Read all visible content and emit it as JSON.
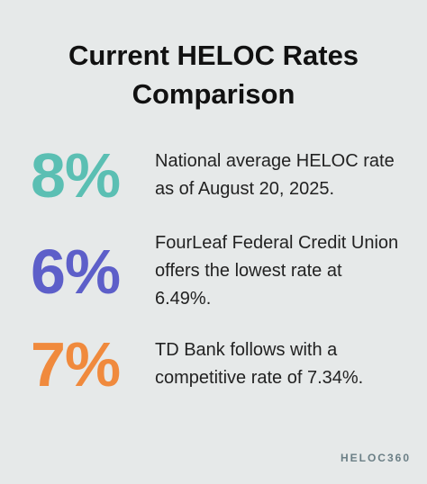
{
  "header": {
    "title": "Current HELOC Rates Comparison"
  },
  "items": [
    {
      "stat": "8%",
      "color": "#5bbfb3",
      "text": "National average HELOC rate as of August 20, 2025."
    },
    {
      "stat": "6%",
      "color": "#5d5fc9",
      "text": "FourLeaf Federal Credit Union offers the lowest rate at 6.49%."
    },
    {
      "stat": "7%",
      "color": "#f08a3d",
      "text": "TD Bank follows with a competitive rate of 7.34%."
    }
  ],
  "footer": {
    "logo": "HELOC360"
  }
}
